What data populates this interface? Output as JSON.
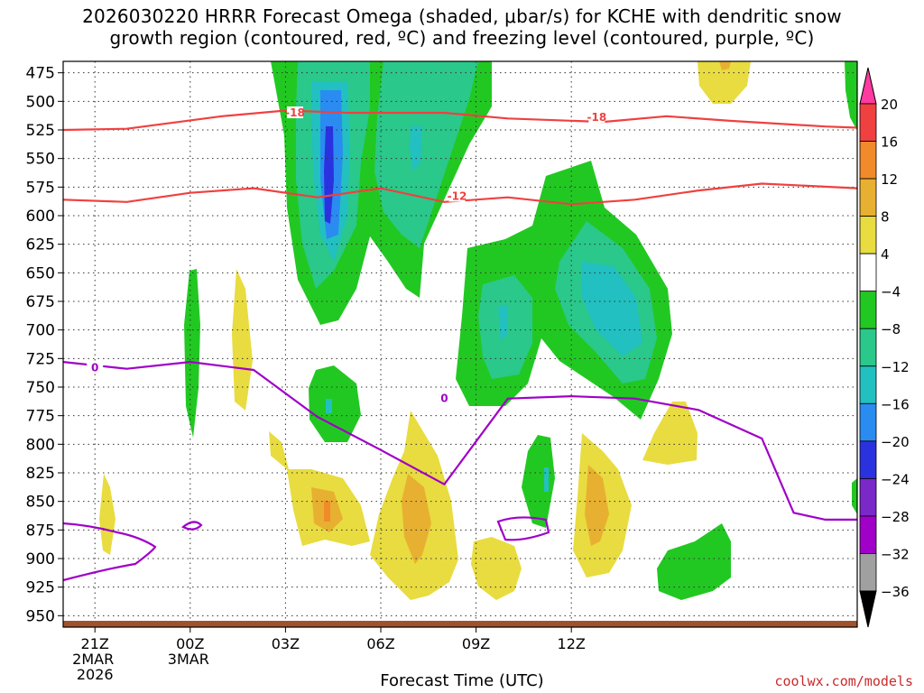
{
  "title": {
    "line1": "2026030220 HRRR Forecast Omega (shaded, μbar/s) for KCHE with dendritic snow",
    "line2": "growth region (contoured, red, ºC) and freezing level (contoured, purple, ºC)"
  },
  "credit": "coolwx.com/models",
  "chart_data": {
    "type": "heatmap",
    "xlabel": "Forecast Time (UTC)",
    "ylabel": "",
    "x_range_hours": [
      -1,
      24
    ],
    "y_range_hpa": [
      465,
      960
    ],
    "y_axis": "pressure (inverted)",
    "y_ticks": [
      475,
      500,
      525,
      550,
      575,
      600,
      625,
      650,
      675,
      700,
      725,
      750,
      775,
      800,
      825,
      850,
      875,
      900,
      925,
      950
    ],
    "x_ticks": [
      {
        "hour": 0,
        "label": "21Z",
        "sub1": "2MAR",
        "sub2": "2026"
      },
      {
        "hour": 3,
        "label": "00Z",
        "sub1": "3MAR",
        "sub2": ""
      },
      {
        "hour": 6,
        "label": "03Z",
        "sub1": "",
        "sub2": ""
      },
      {
        "hour": 9,
        "label": "06Z",
        "sub1": "",
        "sub2": ""
      },
      {
        "hour": 12,
        "label": "09Z",
        "sub1": "",
        "sub2": ""
      },
      {
        "hour": 15,
        "label": "12Z",
        "sub1": "",
        "sub2": ""
      }
    ],
    "grid": true,
    "colorbar": {
      "labels": [
        "20",
        "16",
        "12",
        "8",
        "4",
        "−4",
        "−8",
        "−12",
        "−16",
        "−20",
        "−24",
        "−28",
        "−32",
        "−36"
      ],
      "colors": [
        "#ff3aa0",
        "#f04040",
        "#f08a2a",
        "#e8b030",
        "#e8dc40",
        "#ffffff",
        "#22c822",
        "#2ac88a",
        "#22c0c0",
        "#2a8cf0",
        "#2a32e0",
        "#7a28c8",
        "#a000c8",
        "#a0a0a0",
        "#000000"
      ]
    },
    "contours": {
      "dgz_labels": [
        "-18",
        "-18",
        "-12"
      ],
      "freezing_label": "0"
    },
    "colors": {
      "dgz_line": "#f04040",
      "freezing_line": "#a000c8",
      "ground": "#a0522d"
    },
    "series": [
      {
        "name": "-18",
        "hours": [
          -1,
          1,
          4,
          6,
          8,
          11,
          13,
          16,
          18,
          20,
          23,
          24
        ],
        "hpa": [
          525,
          524,
          513,
          508,
          510,
          510,
          515,
          518,
          513,
          517,
          522,
          523
        ]
      },
      {
        "name": "-12",
        "hours": [
          -1,
          1,
          3,
          5,
          7,
          9,
          11,
          13,
          15,
          17,
          19,
          21,
          24
        ],
        "hpa": [
          586,
          588,
          580,
          576,
          584,
          576,
          588,
          584,
          590,
          586,
          578,
          572,
          576
        ]
      },
      {
        "name": "0",
        "hours": [
          -1,
          1,
          3,
          5,
          7,
          9,
          11,
          13,
          15,
          17,
          19,
          21,
          22,
          23,
          24
        ],
        "hpa": [
          728,
          734,
          728,
          735,
          776,
          805,
          835,
          760,
          758,
          760,
          770,
          795,
          860,
          866,
          866
        ]
      }
    ]
  }
}
